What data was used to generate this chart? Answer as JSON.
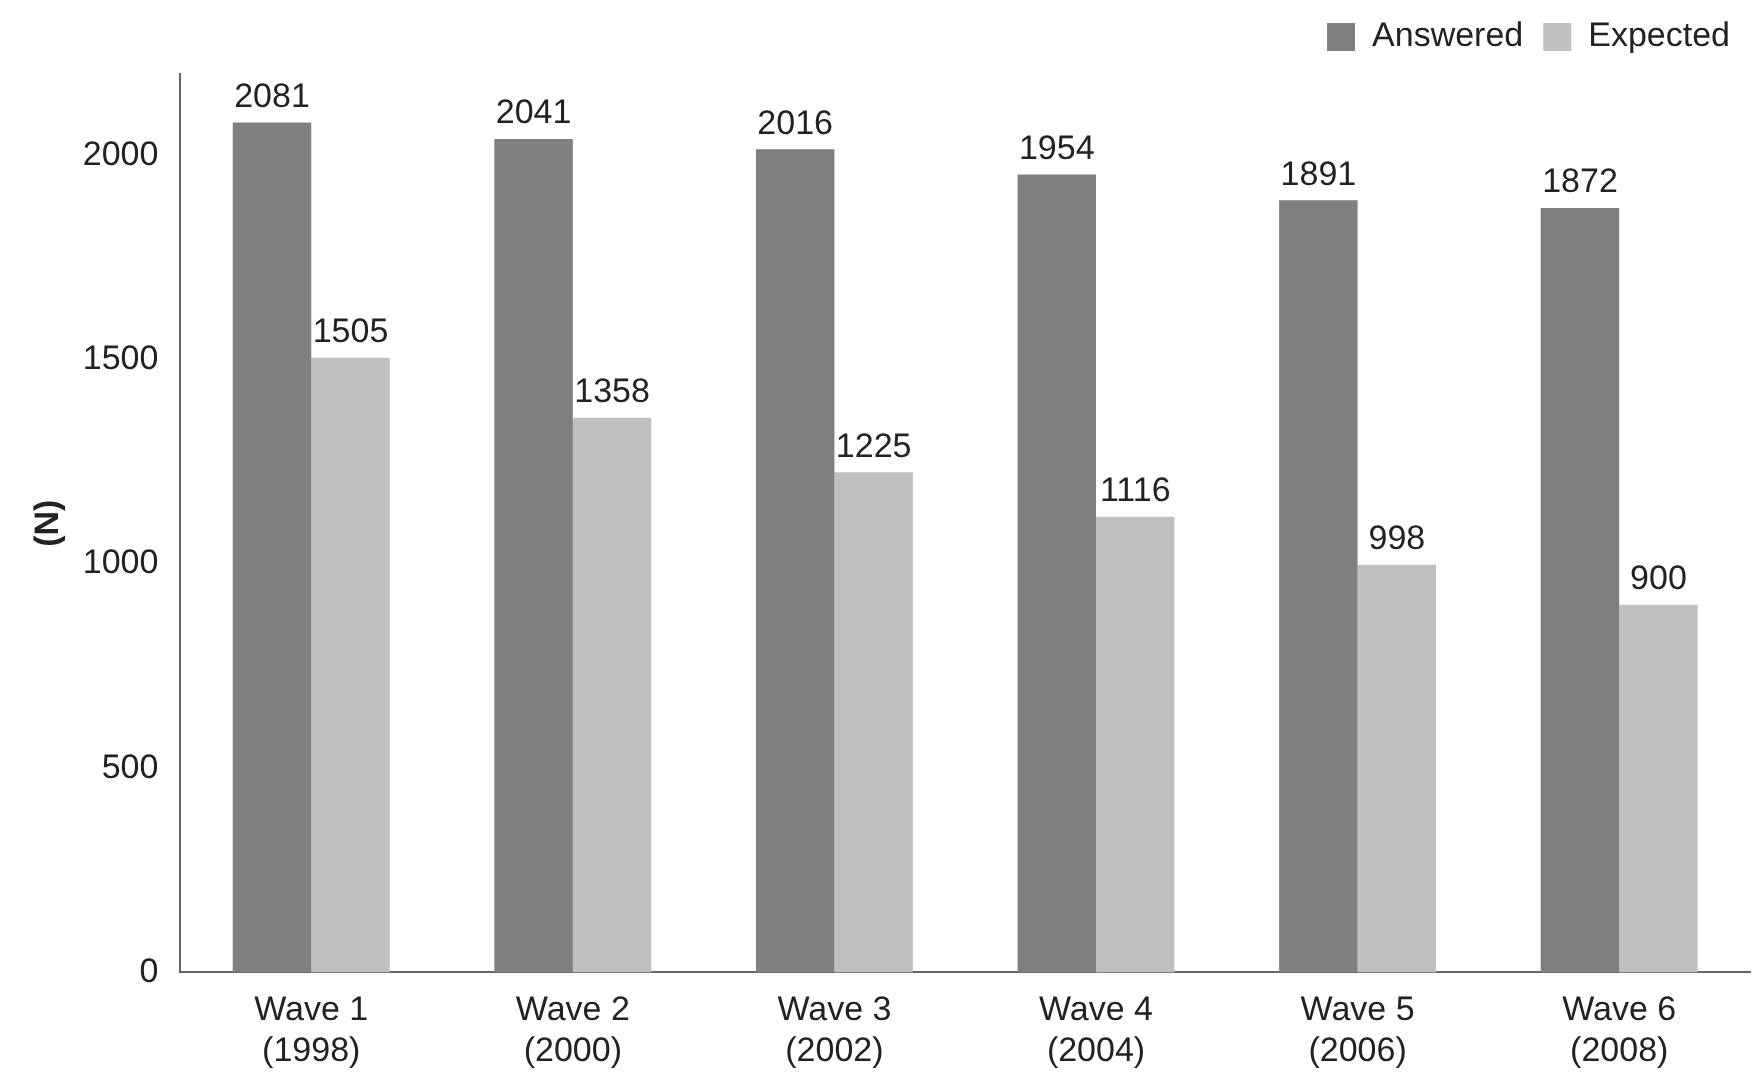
{
  "chart_data": {
    "type": "bar",
    "ylabel": "(N)",
    "categories": [
      "Wave 1 (1998)",
      "Wave 2 (2000)",
      "Wave 3 (2002)",
      "Wave 4 (2004)",
      "Wave 5 (2006)",
      "Wave 6 (2008)"
    ],
    "series": [
      {
        "name": "Answered",
        "color": "#7f7f7f",
        "values": [
          2081,
          2041,
          2016,
          1954,
          1891,
          1872
        ]
      },
      {
        "name": "Expected",
        "color": "#c0c0c0",
        "values": [
          1505,
          1358,
          1225,
          1116,
          998,
          900
        ]
      }
    ],
    "ylim": [
      0,
      2200
    ],
    "yticks": [
      0,
      500,
      1000,
      1500,
      2000
    ],
    "grid": false,
    "legend": "top right",
    "data_labels": true
  }
}
